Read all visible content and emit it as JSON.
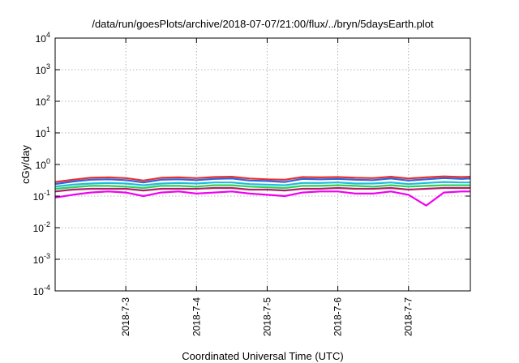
{
  "chart_data": {
    "type": "line",
    "title": "/data/run/goesPlots/archive/2018-07-07/21:00/flux/../bryn/5daysEarth.plot",
    "xlabel": "Coordinated Universal Time (UTC)",
    "ylabel": "cGy/day",
    "x_range": [
      "2018-07-02",
      "2018-07-07T21:00"
    ],
    "x_ticks": [
      "2018-7-3",
      "2018-7-4",
      "2018-7-5",
      "2018-7-6",
      "2018-7-7"
    ],
    "x_tick_dates": [
      "2018-07-03",
      "2018-07-04",
      "2018-07-05",
      "2018-07-06",
      "2018-07-07"
    ],
    "y_scale": "log",
    "ylim": [
      0.0001,
      10000
    ],
    "y_ticks": [
      {
        "base": "10",
        "exp": "-4",
        "value": 0.0001
      },
      {
        "base": "10",
        "exp": "-3",
        "value": 0.001
      },
      {
        "base": "10",
        "exp": "-2",
        "value": 0.01
      },
      {
        "base": "10",
        "exp": "-1",
        "value": 0.1
      },
      {
        "base": "10",
        "exp": "0",
        "value": 1
      },
      {
        "base": "10",
        "exp": "1",
        "value": 10
      },
      {
        "base": "10",
        "exp": "2",
        "value": 100
      },
      {
        "base": "10",
        "exp": "3",
        "value": 1000
      },
      {
        "base": "10",
        "exp": "4",
        "value": 10000
      }
    ],
    "grid": true,
    "x": [
      "2018-07-02 00:00",
      "2018-07-02 06:00",
      "2018-07-02 12:00",
      "2018-07-02 18:00",
      "2018-07-03 00:00",
      "2018-07-03 06:00",
      "2018-07-03 12:00",
      "2018-07-03 18:00",
      "2018-07-04 00:00",
      "2018-07-04 06:00",
      "2018-07-04 12:00",
      "2018-07-04 18:00",
      "2018-07-05 00:00",
      "2018-07-05 06:00",
      "2018-07-05 12:00",
      "2018-07-05 18:00",
      "2018-07-06 00:00",
      "2018-07-06 06:00",
      "2018-07-06 12:00",
      "2018-07-06 18:00",
      "2018-07-07 00:00",
      "2018-07-07 06:00",
      "2018-07-07 12:00",
      "2018-07-07 18:00",
      "2018-07-07 21:00"
    ],
    "series": [
      {
        "color": "#e8302c",
        "values": [
          0.28,
          0.33,
          0.38,
          0.39,
          0.37,
          0.31,
          0.38,
          0.39,
          0.37,
          0.4,
          0.41,
          0.36,
          0.34,
          0.33,
          0.4,
          0.39,
          0.4,
          0.38,
          0.37,
          0.41,
          0.36,
          0.39,
          0.42,
          0.4,
          0.41
        ]
      },
      {
        "color": "#2f63e0",
        "values": [
          0.24,
          0.29,
          0.33,
          0.34,
          0.32,
          0.27,
          0.33,
          0.34,
          0.32,
          0.35,
          0.36,
          0.31,
          0.3,
          0.28,
          0.35,
          0.34,
          0.35,
          0.33,
          0.32,
          0.36,
          0.31,
          0.34,
          0.37,
          0.35,
          0.36
        ]
      },
      {
        "color": "#1fbcd8",
        "values": [
          0.2,
          0.23,
          0.25,
          0.26,
          0.25,
          0.22,
          0.25,
          0.26,
          0.25,
          0.27,
          0.27,
          0.24,
          0.23,
          0.22,
          0.26,
          0.26,
          0.27,
          0.25,
          0.25,
          0.27,
          0.24,
          0.26,
          0.28,
          0.27,
          0.27
        ]
      },
      {
        "color": "#2fcf5a",
        "values": [
          0.17,
          0.19,
          0.21,
          0.21,
          0.2,
          0.18,
          0.21,
          0.21,
          0.2,
          0.22,
          0.22,
          0.2,
          0.19,
          0.18,
          0.21,
          0.21,
          0.22,
          0.21,
          0.2,
          0.22,
          0.2,
          0.21,
          0.22,
          0.22,
          0.22
        ]
      },
      {
        "color": "#b0206a",
        "values": [
          0.14,
          0.16,
          0.17,
          0.17,
          0.17,
          0.15,
          0.17,
          0.17,
          0.17,
          0.18,
          0.18,
          0.16,
          0.16,
          0.15,
          0.17,
          0.17,
          0.18,
          0.17,
          0.17,
          0.18,
          0.16,
          0.17,
          0.18,
          0.18,
          0.18
        ]
      },
      {
        "color": "#f000f0",
        "values": [
          0.09,
          0.11,
          0.13,
          0.14,
          0.13,
          0.1,
          0.13,
          0.14,
          0.12,
          0.13,
          0.14,
          0.12,
          0.11,
          0.1,
          0.13,
          0.14,
          0.14,
          0.12,
          0.12,
          0.14,
          0.11,
          0.05,
          0.13,
          0.14,
          0.14
        ]
      }
    ]
  }
}
